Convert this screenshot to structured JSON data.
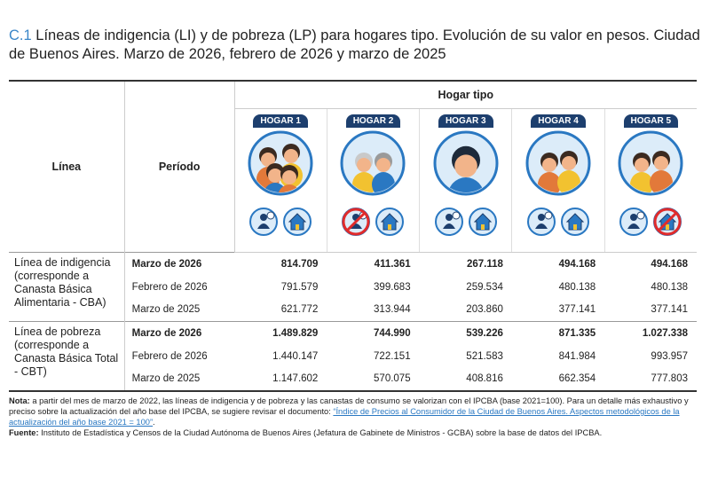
{
  "title": {
    "prefix": "C.1",
    "text": "Líneas de indigencia (LI) y de pobreza (LP) para hogares tipo. Evolución de su valor en pesos. Ciudad de Buenos Aires. Marzo de 2026, febrero de 2026 y marzo de 2025"
  },
  "header": {
    "linea": "Línea",
    "periodo": "Período",
    "hogar_tipo": "Hogar tipo",
    "hogares": [
      "HOGAR 1",
      "HOGAR 2",
      "HOGAR 3",
      "HOGAR 4",
      "HOGAR 5"
    ]
  },
  "table": {
    "groups": [
      {
        "label": "Línea de indigencia (corresponde a Canasta Básica Alimentaria - CBA)",
        "rows": [
          {
            "period": "Marzo de 2026",
            "values": [
              "814.709",
              "411.361",
              "267.118",
              "494.168",
              "494.168"
            ]
          },
          {
            "period": "Febrero de 2026",
            "values": [
              "791.579",
              "399.683",
              "259.534",
              "480.138",
              "480.138"
            ]
          },
          {
            "period": "Marzo de 2025",
            "values": [
              "621.772",
              "313.944",
              "203.860",
              "377.141",
              "377.141"
            ]
          }
        ]
      },
      {
        "label": "Línea de pobreza (corresponde a Canasta Básica Total - CBT)",
        "rows": [
          {
            "period": "Marzo de 2026",
            "values": [
              "1.489.829",
              "744.990",
              "539.226",
              "871.335",
              "1.027.338"
            ]
          },
          {
            "period": "Febrero de 2026",
            "values": [
              "1.440.147",
              "722.151",
              "521.583",
              "841.984",
              "993.957"
            ]
          },
          {
            "period": "Marzo de 2025",
            "values": [
              "1.147.602",
              "570.075",
              "408.816",
              "662.354",
              "777.803"
            ]
          }
        ]
      }
    ]
  },
  "notes": {
    "nota_label": "Nota:",
    "nota_text": "a partir del mes de marzo de 2022, las líneas de indigencia y de pobreza y las canastas de consumo se valorizan con el IPCBA (base 2021=100). Para un detalle más exhaustivo y preciso sobre la actualización del año base del IPCBA, se sugiere revisar el documento: ",
    "link": "“Índice de Precios al Consumidor de la Ciudad de Buenos Aires. Aspectos metodológicos de la actualización del año base 2021 = 100”",
    "nota_end": ".",
    "fuente_label": "Fuente:",
    "fuente_text": "Instituto de Estadística y Censos de la Ciudad Autónoma de Buenos Aires (Jefatura de Gabinete de Ministros - GCBA) sobre la base de datos del IPCBA."
  }
}
